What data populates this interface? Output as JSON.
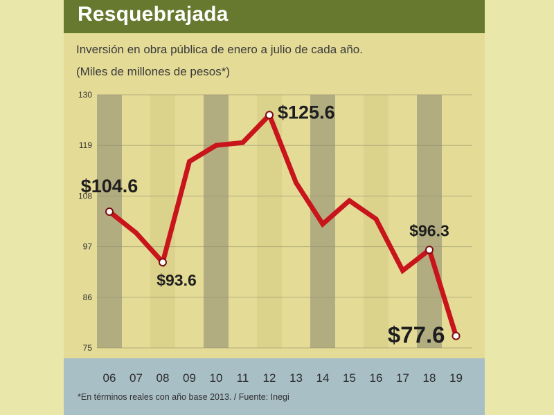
{
  "title": "Resquebrajada",
  "subtitle": "Inversión en obra pública de enero a julio de cada año.",
  "unit_note": "(Miles de millones de pesos*)",
  "footnote": "*En términos reales con año base 2013. / Fuente: Inegi",
  "colors": {
    "line": "#c8141b",
    "band_dark": "#a9a57c",
    "band_light": "#d9d089",
    "header": "#66792e",
    "footer": "#a9bfc6"
  },
  "chart_data": {
    "type": "line",
    "title": "Resquebrajada",
    "xlabel": "",
    "ylabel": "",
    "categories": [
      "06",
      "07",
      "08",
      "09",
      "10",
      "11",
      "12",
      "13",
      "14",
      "15",
      "16",
      "17",
      "18",
      "19"
    ],
    "series": [
      {
        "values": [
          104.6,
          100.0,
          93.6,
          115.5,
          119.0,
          119.6,
          125.6,
          110.9,
          101.9,
          107.0,
          103.0,
          91.8,
          96.3,
          77.6
        ]
      }
    ],
    "yticks": [
      130,
      119,
      108,
      97,
      86,
      75
    ],
    "ylim": [
      75,
      130
    ],
    "grid": true,
    "annotations": [
      {
        "index": 0,
        "label": "$104.6"
      },
      {
        "index": 2,
        "label": "$93.6"
      },
      {
        "index": 6,
        "label": "$125.6"
      },
      {
        "index": 12,
        "label": "$96.3"
      },
      {
        "index": 13,
        "label": "$77.6"
      }
    ]
  }
}
